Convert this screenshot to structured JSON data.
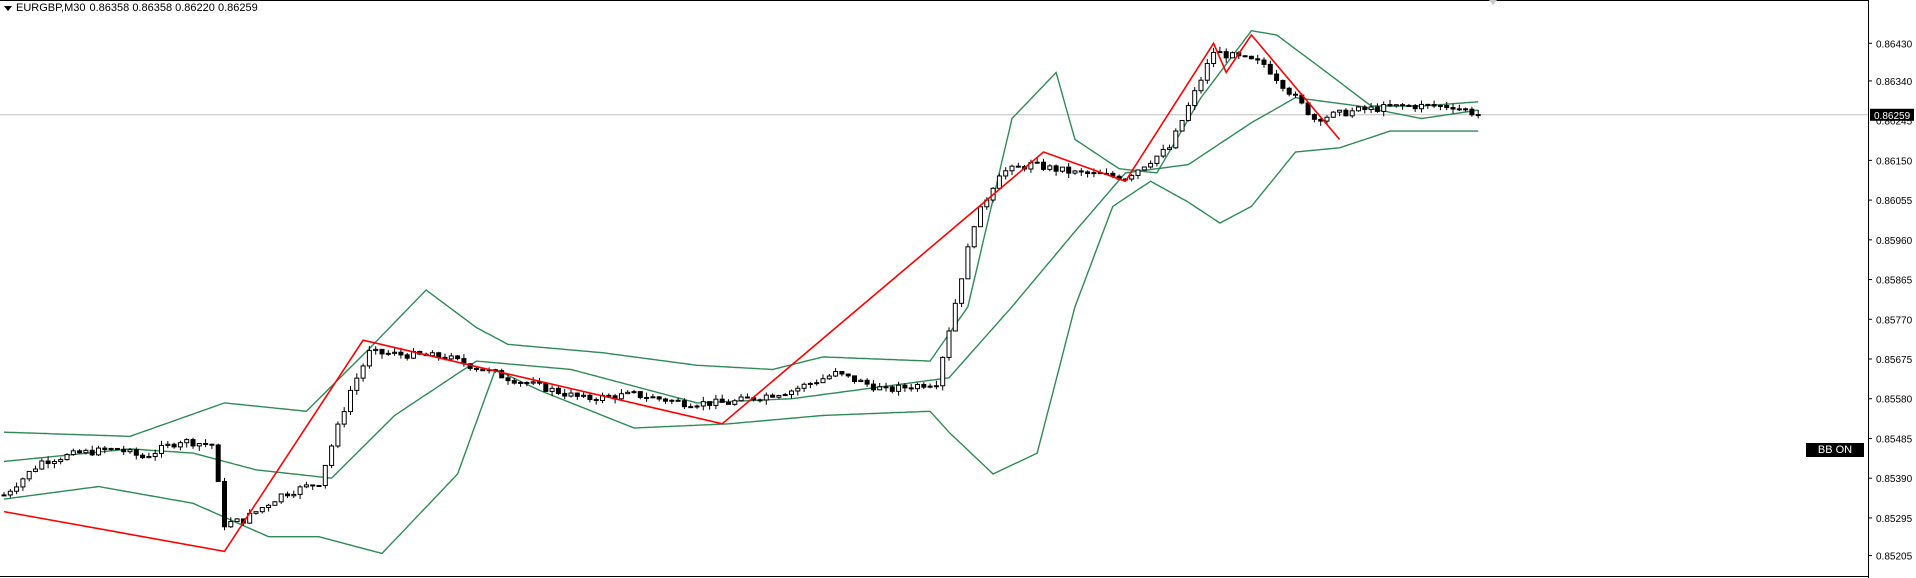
{
  "header": {
    "symbol_timeframe": "EURGBP,M30",
    "ohlc": "0.86358 0.86358 0.86220 0.86259"
  },
  "price_axis": {
    "ticks": [
      "0.86430",
      "0.86340",
      "0.86150",
      "0.86055",
      "0.85960",
      "0.85865",
      "0.85770",
      "0.85675",
      "0.85580",
      "0.85485",
      "0.85390",
      "0.85295",
      "0.85205"
    ],
    "current_price_label": "0.86259",
    "hidden_label": "0.86245",
    "current_price": 0.86259
  },
  "indicator_button": {
    "label": "BB ON"
  },
  "colors": {
    "background": "#ffffff",
    "bollinger_bands": "#2e8b57",
    "zigzag": "#ff0000",
    "candles": "#000000",
    "price_line": "#c0c0c0"
  },
  "chart_data": {
    "type": "candlestick",
    "symbol": "EURGBP",
    "timeframe": "M30",
    "y_range": [
      0.8518,
      0.865
    ],
    "bar_count": 240,
    "zigzag_points": [
      {
        "bar": 0,
        "price": 0.8531
      },
      {
        "bar": 35,
        "price": 0.85215
      },
      {
        "bar": 57,
        "price": 0.8572
      },
      {
        "bar": 114,
        "price": 0.8552
      },
      {
        "bar": 165,
        "price": 0.8617
      },
      {
        "bar": 178,
        "price": 0.861
      },
      {
        "bar": 192,
        "price": 0.8643
      },
      {
        "bar": 194,
        "price": 0.8636
      },
      {
        "bar": 198,
        "price": 0.8645
      },
      {
        "bar": 212,
        "price": 0.862
      }
    ],
    "bollinger": {
      "upper_key": [
        {
          "bar": 0,
          "price": 0.855
        },
        {
          "bar": 20,
          "price": 0.8549
        },
        {
          "bar": 35,
          "price": 0.8557
        },
        {
          "bar": 48,
          "price": 0.8555
        },
        {
          "bar": 58,
          "price": 0.857
        },
        {
          "bar": 67,
          "price": 0.8584
        },
        {
          "bar": 75,
          "price": 0.8575
        },
        {
          "bar": 80,
          "price": 0.8571
        },
        {
          "bar": 95,
          "price": 0.8569
        },
        {
          "bar": 110,
          "price": 0.8566
        },
        {
          "bar": 122,
          "price": 0.8565
        },
        {
          "bar": 130,
          "price": 0.8568
        },
        {
          "bar": 147,
          "price": 0.8567
        },
        {
          "bar": 153,
          "price": 0.858
        },
        {
          "bar": 160,
          "price": 0.8625
        },
        {
          "bar": 167,
          "price": 0.8636
        },
        {
          "bar": 170,
          "price": 0.862
        },
        {
          "bar": 177,
          "price": 0.8613
        },
        {
          "bar": 183,
          "price": 0.8612
        },
        {
          "bar": 190,
          "price": 0.863
        },
        {
          "bar": 198,
          "price": 0.8646
        },
        {
          "bar": 202,
          "price": 0.8645
        },
        {
          "bar": 210,
          "price": 0.8636
        },
        {
          "bar": 217,
          "price": 0.8628
        },
        {
          "bar": 225,
          "price": 0.8628
        },
        {
          "bar": 234,
          "price": 0.8629
        }
      ],
      "middle_key": [
        {
          "bar": 0,
          "price": 0.8543
        },
        {
          "bar": 20,
          "price": 0.8546
        },
        {
          "bar": 30,
          "price": 0.8545
        },
        {
          "bar": 40,
          "price": 0.8541
        },
        {
          "bar": 52,
          "price": 0.8539
        },
        {
          "bar": 62,
          "price": 0.8554
        },
        {
          "bar": 75,
          "price": 0.8567
        },
        {
          "bar": 90,
          "price": 0.8565
        },
        {
          "bar": 110,
          "price": 0.8557
        },
        {
          "bar": 125,
          "price": 0.8558
        },
        {
          "bar": 140,
          "price": 0.8561
        },
        {
          "bar": 150,
          "price": 0.8563
        },
        {
          "bar": 160,
          "price": 0.858
        },
        {
          "bar": 170,
          "price": 0.8598
        },
        {
          "bar": 178,
          "price": 0.8612
        },
        {
          "bar": 188,
          "price": 0.8614
        },
        {
          "bar": 198,
          "price": 0.8624
        },
        {
          "bar": 205,
          "price": 0.863
        },
        {
          "bar": 215,
          "price": 0.8628
        },
        {
          "bar": 225,
          "price": 0.8625
        },
        {
          "bar": 234,
          "price": 0.8627
        }
      ],
      "lower_key": [
        {
          "bar": 0,
          "price": 0.8534
        },
        {
          "bar": 15,
          "price": 0.8537
        },
        {
          "bar": 30,
          "price": 0.8533
        },
        {
          "bar": 42,
          "price": 0.8525
        },
        {
          "bar": 50,
          "price": 0.8525
        },
        {
          "bar": 60,
          "price": 0.8521
        },
        {
          "bar": 72,
          "price": 0.854
        },
        {
          "bar": 78,
          "price": 0.8565
        },
        {
          "bar": 85,
          "price": 0.856
        },
        {
          "bar": 100,
          "price": 0.8551
        },
        {
          "bar": 115,
          "price": 0.8552
        },
        {
          "bar": 130,
          "price": 0.8554
        },
        {
          "bar": 147,
          "price": 0.8555
        },
        {
          "bar": 150,
          "price": 0.855
        },
        {
          "bar": 157,
          "price": 0.854
        },
        {
          "bar": 164,
          "price": 0.8545
        },
        {
          "bar": 170,
          "price": 0.858
        },
        {
          "bar": 176,
          "price": 0.8604
        },
        {
          "bar": 182,
          "price": 0.861
        },
        {
          "bar": 188,
          "price": 0.8605
        },
        {
          "bar": 193,
          "price": 0.86
        },
        {
          "bar": 198,
          "price": 0.8604
        },
        {
          "bar": 205,
          "price": 0.8617
        },
        {
          "bar": 212,
          "price": 0.8618
        },
        {
          "bar": 220,
          "price": 0.8622
        },
        {
          "bar": 234,
          "price": 0.8622
        }
      ]
    },
    "price_path_key": [
      {
        "bar": 0,
        "price": 0.8535
      },
      {
        "bar": 6,
        "price": 0.8543
      },
      {
        "bar": 12,
        "price": 0.8545
      },
      {
        "bar": 18,
        "price": 0.8546
      },
      {
        "bar": 22,
        "price": 0.8544
      },
      {
        "bar": 28,
        "price": 0.8548
      },
      {
        "bar": 33,
        "price": 0.8547
      },
      {
        "bar": 35,
        "price": 0.8528
      },
      {
        "bar": 38,
        "price": 0.8529
      },
      {
        "bar": 44,
        "price": 0.8535
      },
      {
        "bar": 50,
        "price": 0.8538
      },
      {
        "bar": 55,
        "price": 0.856
      },
      {
        "bar": 58,
        "price": 0.8569
      },
      {
        "bar": 70,
        "price": 0.8568
      },
      {
        "bar": 80,
        "price": 0.8563
      },
      {
        "bar": 92,
        "price": 0.8558
      },
      {
        "bar": 100,
        "price": 0.8559
      },
      {
        "bar": 108,
        "price": 0.8557
      },
      {
        "bar": 115,
        "price": 0.8557
      },
      {
        "bar": 125,
        "price": 0.856
      },
      {
        "bar": 132,
        "price": 0.8564
      },
      {
        "bar": 140,
        "price": 0.856
      },
      {
        "bar": 148,
        "price": 0.8562
      },
      {
        "bar": 154,
        "price": 0.86
      },
      {
        "bar": 158,
        "price": 0.8612
      },
      {
        "bar": 163,
        "price": 0.8614
      },
      {
        "bar": 170,
        "price": 0.8612
      },
      {
        "bar": 178,
        "price": 0.8611
      },
      {
        "bar": 185,
        "price": 0.8618
      },
      {
        "bar": 192,
        "price": 0.8641
      },
      {
        "bar": 200,
        "price": 0.8638
      },
      {
        "bar": 208,
        "price": 0.8625
      },
      {
        "bar": 215,
        "price": 0.8627
      },
      {
        "bar": 222,
        "price": 0.8628
      },
      {
        "bar": 230,
        "price": 0.8628
      },
      {
        "bar": 234,
        "price": 0.8626
      }
    ]
  }
}
